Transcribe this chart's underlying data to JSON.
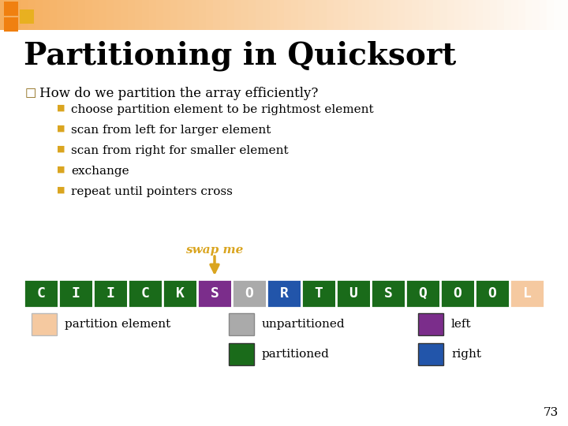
{
  "title": "Partitioning in Quicksort",
  "title_fontsize": 28,
  "bullet_header": "How do we partition the array efficiently?",
  "bullets": [
    "choose partition element to be rightmost element",
    "scan from left for larger element",
    "scan from right for smaller element",
    "exchange",
    "repeat until pointers cross"
  ],
  "swap_me_text": "swap me",
  "swap_me_color": "#DAA520",
  "array_letters": [
    "C",
    "I",
    "I",
    "C",
    "K",
    "S",
    "O",
    "R",
    "T",
    "U",
    "S",
    "Q",
    "O",
    "O",
    "L"
  ],
  "array_colors": [
    "#1a6b1a",
    "#1a6b1a",
    "#1a6b1a",
    "#1a6b1a",
    "#1a6b1a",
    "#7b2d8b",
    "#aaaaaa",
    "#2255aa",
    "#1a6b1a",
    "#1a6b1a",
    "#1a6b1a",
    "#1a6b1a",
    "#1a6b1a",
    "#1a6b1a",
    "#f5c9a0"
  ],
  "arrow_index": 5,
  "legend_items": [
    {
      "label": "partition element",
      "color": "#f5c9a0",
      "edge": "#bbbbbb"
    },
    {
      "label": "unpartitioned",
      "color": "#aaaaaa",
      "edge": "#888888"
    },
    {
      "label": "partitioned",
      "color": "#1a6b1a",
      "edge": "#333333"
    },
    {
      "label": "left",
      "color": "#7b2d8b",
      "edge": "#333333"
    },
    {
      "label": "right",
      "color": "#2255aa",
      "edge": "#333333"
    }
  ],
  "page_num": "73",
  "bg_color": "#ffffff",
  "bullet_square_color": "#DAA520",
  "text_color": "#000000",
  "header_bullet_color": "#8B6914",
  "orange_bar_color": "#F4A040",
  "orange_sq1_color": "#F08010",
  "orange_sq2_color": "#E8B020"
}
